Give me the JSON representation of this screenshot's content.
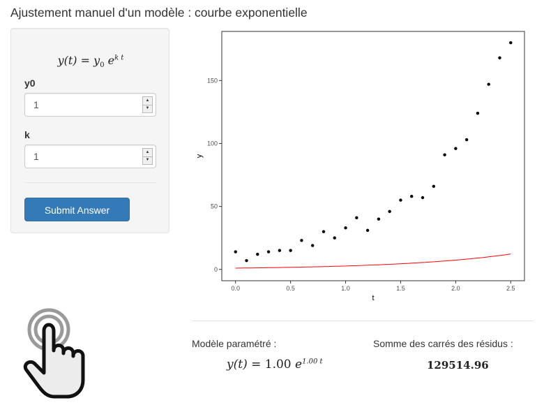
{
  "page": {
    "title": "Ajustement manuel d'un modèle : courbe exponentielle"
  },
  "sidebar": {
    "equation": {
      "lhs": "y(t)",
      "equals": "=",
      "y": "y",
      "y_sub": "0",
      "base": "e",
      "exponent": "k t"
    },
    "y0": {
      "label": "y0",
      "value": "1"
    },
    "k": {
      "label": "k",
      "value": "1"
    },
    "submit_label": "Submit Answer"
  },
  "results": {
    "model_label": "Modèle paramétré :",
    "ssr_label": "Somme des carrés des résidus :",
    "model_eq": {
      "lhs": "y(t)",
      "equals": "=",
      "coef": "1.00",
      "base": "e",
      "exponent": "1.00 t"
    },
    "ssr_value": "129514.96"
  },
  "icons": {
    "pointer": "pointer-hand-icon"
  },
  "chart_data": {
    "type": "scatter",
    "xlabel": "t",
    "ylabel": "y",
    "xlim": [
      -0.125,
      2.625
    ],
    "ylim": [
      -9,
      189
    ],
    "x_ticks": [
      0.0,
      0.5,
      1.0,
      1.5,
      2.0,
      2.5
    ],
    "x_tick_labels": [
      "0.0",
      "0.5",
      "1.0",
      "1.5",
      "2.0",
      "2.5"
    ],
    "y_ticks": [
      0,
      50,
      100,
      150
    ],
    "y_tick_labels": [
      "0",
      "50",
      "100",
      "150"
    ],
    "grid": false,
    "point_color": "#000000",
    "curve_color": "#ff0000",
    "points": {
      "x": [
        0.0,
        0.1,
        0.2,
        0.3,
        0.4,
        0.5,
        0.6,
        0.7,
        0.8,
        0.9,
        1.0,
        1.1,
        1.2,
        1.3,
        1.4,
        1.5,
        1.6,
        1.7,
        1.8,
        1.9,
        2.0,
        2.1,
        2.2,
        2.3,
        2.4,
        2.5
      ],
      "y": [
        14,
        7,
        12,
        14,
        15,
        15,
        23,
        19,
        30,
        25,
        33,
        41,
        31,
        40,
        46,
        55,
        58,
        57,
        66,
        91,
        96,
        103,
        124,
        147,
        168,
        180
      ]
    },
    "curve": {
      "y0": 1.0,
      "k": 1.0,
      "x_range": [
        0.0,
        2.5
      ]
    }
  }
}
